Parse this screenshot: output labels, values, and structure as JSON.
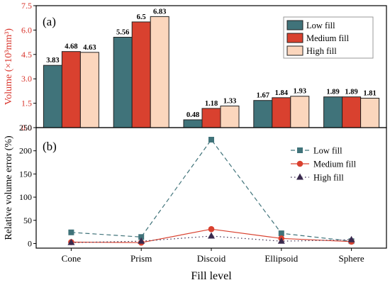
{
  "chart_data": [
    {
      "type": "bar",
      "panel_label": "(a)",
      "categories": [
        "Cone",
        "Prism",
        "Discoid",
        "Ellipsoid",
        "Sphere"
      ],
      "ylabel": "Volume (×10³mm³)",
      "ylabel_color": "#d9342b",
      "ylim": [
        0,
        7.5
      ],
      "yticks": [
        "0.0",
        "1.5",
        "3.0",
        "4.5",
        "6.0",
        "7.5"
      ],
      "legend_position": "top-right",
      "grid": false,
      "series": [
        {
          "name": "Low fill",
          "color": "#40737a",
          "values": [
            3.83,
            5.56,
            0.48,
            1.67,
            1.89
          ],
          "labels": [
            "3.83",
            "5.56",
            "0.48",
            "1.67",
            "1.89"
          ]
        },
        {
          "name": "Medium fill",
          "color": "#d9412f",
          "values": [
            4.68,
            6.5,
            1.18,
            1.84,
            1.89
          ],
          "labels": [
            "4.68",
            "6.5",
            "1.18",
            "1.84",
            "1.89"
          ]
        },
        {
          "name": "High fill",
          "color": "#fbd6bd",
          "values": [
            4.63,
            6.83,
            1.33,
            1.93,
            1.81
          ],
          "labels": [
            "4.63",
            "6.83",
            "1.33",
            "1.93",
            "1.81"
          ]
        }
      ]
    },
    {
      "type": "line",
      "panel_label": "(b)",
      "categories": [
        "Cone",
        "Prism",
        "Discoid",
        "Ellipsoid",
        "Sphere"
      ],
      "xlabel": "Fill level",
      "ylabel": "Relative volume error (%)",
      "ylim": [
        -10,
        250
      ],
      "yticks": [
        "0",
        "50",
        "100",
        "150",
        "200",
        "250"
      ],
      "legend_position": "top-right",
      "grid": false,
      "series": [
        {
          "name": "Low fill",
          "color": "#40737a",
          "marker": "square",
          "line": "dashed",
          "values": [
            24,
            14,
            224,
            22,
            5
          ]
        },
        {
          "name": "Medium fill",
          "color": "#d9412f",
          "marker": "circle",
          "line": "solid",
          "values": [
            3,
            2,
            31,
            11,
            4
          ]
        },
        {
          "name": "High fill",
          "color": "#3a2a4e",
          "marker": "triangle",
          "line": "dotted",
          "values": [
            2,
            5,
            16,
            5,
            8
          ]
        }
      ]
    }
  ]
}
